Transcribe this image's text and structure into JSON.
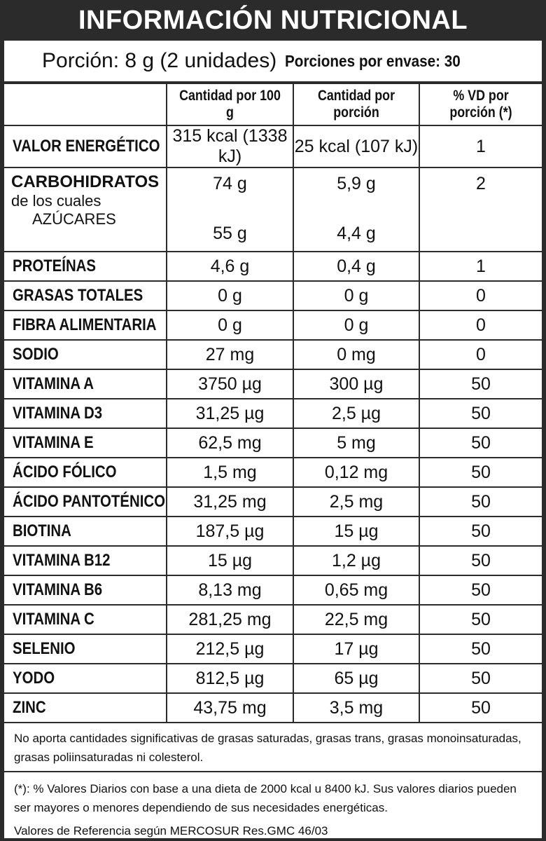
{
  "title": "INFORMACIÓN NUTRICIONAL",
  "portion": {
    "main": "Porción: 8 g (2 unidades)",
    "sub": "Porciones por envase: 30"
  },
  "headers": [
    "",
    "Cantidad por 100 g",
    "Cantidad por porción",
    "% VD  por porción (*)"
  ],
  "energy": {
    "name": "VALOR ENERGÉTICO",
    "per100": "315 kcal (1338 kJ)",
    "perPortion": "25 kcal (107 kJ)",
    "vd": "1"
  },
  "carbs": {
    "name": "CARBOHIDRATOS",
    "per100": "74 g",
    "perPortion": "5,9 g",
    "vd": "2",
    "sub_label": "de los cuales",
    "sugar_name": "AZÚCARES",
    "sugar_per100": "55 g",
    "sugar_perPortion": "4,4 g"
  },
  "rows": [
    {
      "name": "PROTEÍNAS",
      "per100": "4,6 g",
      "perPortion": "0,4 g",
      "vd": "1"
    },
    {
      "name": "GRASAS TOTALES",
      "per100": "0 g",
      "perPortion": "0 g",
      "vd": "0"
    },
    {
      "name": "FIBRA ALIMENTARIA",
      "per100": "0 g",
      "perPortion": "0 g",
      "vd": "0"
    },
    {
      "name": "SODIO",
      "per100": "27 mg",
      "perPortion": "0 mg",
      "vd": "0"
    },
    {
      "name": "VITAMINA A",
      "per100": "3750 µg",
      "perPortion": "300 µg",
      "vd": "50"
    },
    {
      "name": "VITAMINA D3",
      "per100": "31,25 µg",
      "perPortion": "2,5 µg",
      "vd": "50"
    },
    {
      "name": "VITAMINA E",
      "per100": "62,5 mg",
      "perPortion": "5 mg",
      "vd": "50"
    },
    {
      "name": "ÁCIDO FÓLICO",
      "per100": "1,5 mg",
      "perPortion": "0,12 mg",
      "vd": "50"
    },
    {
      "name": "ÁCIDO PANTOTÉNICO",
      "per100": "31,25 mg",
      "perPortion": "2,5 mg",
      "vd": "50"
    },
    {
      "name": "BIOTINA",
      "per100": "187,5 µg",
      "perPortion": "15 µg",
      "vd": "50"
    },
    {
      "name": "VITAMINA B12",
      "per100": "15 µg",
      "perPortion": "1,2 µg",
      "vd": "50"
    },
    {
      "name": "VITAMINA B6",
      "per100": "8,13 mg",
      "perPortion": "0,65 mg",
      "vd": "50"
    },
    {
      "name": "VITAMINA C",
      "per100": "281,25 mg",
      "perPortion": "22,5 mg",
      "vd": "50"
    },
    {
      "name": "SELENIO",
      "per100": "212,5 µg",
      "perPortion": "17 µg",
      "vd": "50"
    },
    {
      "name": "YODO",
      "per100": "812,5 µg",
      "perPortion": "65 µg",
      "vd": "50"
    },
    {
      "name": "ZINC",
      "per100": "43,75 mg",
      "perPortion": "3,5 mg",
      "vd": "50"
    }
  ],
  "notes": {
    "no_significant": "No aporta cantidades significativas de grasas saturadas, grasas trans, grasas monoinsaturadas, grasas poliinsaturadas ni colesterol.",
    "vd_note": "(*): % Valores Diarios con base a una dieta de 2000 kcal u 8400 kJ. Sus valores diarios pueden ser mayores o menores dependiendo de sus necesidades energéticas.",
    "reference": "Valores de Referencia según MERCOSUR Res.GMC 46/03"
  }
}
